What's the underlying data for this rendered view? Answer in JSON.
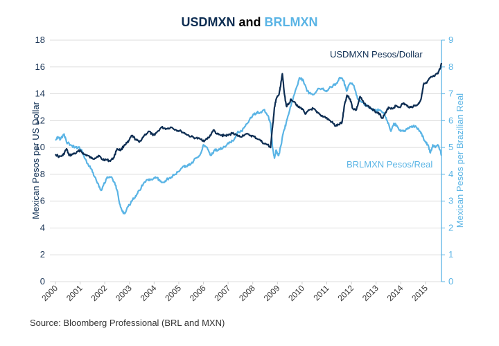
{
  "chart_data": {
    "type": "line",
    "title": {
      "part1": "USDMXN",
      "joiner": " and ",
      "part2": "BRLMXN"
    },
    "ylabel_left": "Mexican Pesos per US Dollar",
    "ylabel_right": "Mexican Pesos per Brazilian Real",
    "ylim_left": [
      0,
      18
    ],
    "ylim_right": [
      0,
      9
    ],
    "yticks_left": [
      "0",
      "2",
      "4",
      "6",
      "8",
      "10",
      "12",
      "14",
      "16",
      "18"
    ],
    "yticks_right": [
      "0",
      "1",
      "2",
      "3",
      "4",
      "5",
      "6",
      "7",
      "8",
      "9"
    ],
    "xlim": [
      2000,
      2015.65
    ],
    "xticks": [
      "2000",
      "2001",
      "2002",
      "2003",
      "2004",
      "2005",
      "2006",
      "2007",
      "2008",
      "2009",
      "2010",
      "2011",
      "2012",
      "2013",
      "2014",
      "2015"
    ],
    "grid": true,
    "colors": {
      "usd": "#0d2d52",
      "brl": "#5ab4e5"
    },
    "series": [
      {
        "name": "USDMXN Pesos/Dollar",
        "axis": "left",
        "points": [
          [
            2000.0,
            9.5
          ],
          [
            2000.15,
            9.3
          ],
          [
            2000.3,
            9.4
          ],
          [
            2000.45,
            9.9
          ],
          [
            2000.55,
            9.4
          ],
          [
            2000.7,
            9.5
          ],
          [
            2000.85,
            9.6
          ],
          [
            2001.0,
            9.8
          ],
          [
            2001.15,
            9.5
          ],
          [
            2001.3,
            9.4
          ],
          [
            2001.45,
            9.2
          ],
          [
            2001.6,
            9.2
          ],
          [
            2001.75,
            9.4
          ],
          [
            2001.9,
            9.1
          ],
          [
            2002.05,
            9.1
          ],
          [
            2002.2,
            9.0
          ],
          [
            2002.35,
            9.2
          ],
          [
            2002.5,
            9.9
          ],
          [
            2002.65,
            9.8
          ],
          [
            2002.8,
            10.2
          ],
          [
            2002.95,
            10.4
          ],
          [
            2003.1,
            10.9
          ],
          [
            2003.25,
            10.6
          ],
          [
            2003.4,
            10.4
          ],
          [
            2003.6,
            10.9
          ],
          [
            2003.8,
            11.2
          ],
          [
            2003.95,
            10.9
          ],
          [
            2004.1,
            11.1
          ],
          [
            2004.3,
            11.5
          ],
          [
            2004.5,
            11.4
          ],
          [
            2004.7,
            11.5
          ],
          [
            2004.9,
            11.3
          ],
          [
            2005.1,
            11.2
          ],
          [
            2005.3,
            11.0
          ],
          [
            2005.5,
            10.8
          ],
          [
            2005.7,
            10.7
          ],
          [
            2005.9,
            10.6
          ],
          [
            2006.05,
            10.5
          ],
          [
            2006.25,
            10.8
          ],
          [
            2006.4,
            11.3
          ],
          [
            2006.55,
            11.0
          ],
          [
            2006.7,
            10.9
          ],
          [
            2006.85,
            10.9
          ],
          [
            2007.0,
            10.9
          ],
          [
            2007.2,
            11.1
          ],
          [
            2007.35,
            10.9
          ],
          [
            2007.5,
            10.8
          ],
          [
            2007.7,
            11.0
          ],
          [
            2007.9,
            10.9
          ],
          [
            2008.05,
            10.8
          ],
          [
            2008.25,
            10.6
          ],
          [
            2008.45,
            10.3
          ],
          [
            2008.6,
            10.2
          ],
          [
            2008.72,
            10.0
          ],
          [
            2008.8,
            11.5
          ],
          [
            2008.88,
            13.0
          ],
          [
            2008.95,
            13.6
          ],
          [
            2009.05,
            13.9
          ],
          [
            2009.12,
            14.5
          ],
          [
            2009.2,
            15.5
          ],
          [
            2009.28,
            14.0
          ],
          [
            2009.36,
            13.1
          ],
          [
            2009.45,
            13.2
          ],
          [
            2009.55,
            13.6
          ],
          [
            2009.7,
            13.4
          ],
          [
            2009.85,
            13.0
          ],
          [
            2010.0,
            12.9
          ],
          [
            2010.15,
            12.5
          ],
          [
            2010.3,
            12.8
          ],
          [
            2010.45,
            12.9
          ],
          [
            2010.6,
            12.6
          ],
          [
            2010.75,
            12.4
          ],
          [
            2010.9,
            12.3
          ],
          [
            2011.05,
            12.1
          ],
          [
            2011.2,
            11.9
          ],
          [
            2011.35,
            11.6
          ],
          [
            2011.5,
            11.7
          ],
          [
            2011.62,
            11.9
          ],
          [
            2011.72,
            13.2
          ],
          [
            2011.82,
            13.9
          ],
          [
            2011.95,
            13.6
          ],
          [
            2012.05,
            12.9
          ],
          [
            2012.2,
            12.8
          ],
          [
            2012.35,
            13.8
          ],
          [
            2012.5,
            13.3
          ],
          [
            2012.65,
            13.1
          ],
          [
            2012.8,
            12.9
          ],
          [
            2012.95,
            12.7
          ],
          [
            2013.1,
            12.6
          ],
          [
            2013.25,
            12.2
          ],
          [
            2013.4,
            12.6
          ],
          [
            2013.5,
            13.0
          ],
          [
            2013.65,
            12.9
          ],
          [
            2013.8,
            13.1
          ],
          [
            2013.95,
            13.0
          ],
          [
            2014.1,
            13.3
          ],
          [
            2014.25,
            13.1
          ],
          [
            2014.4,
            13.0
          ],
          [
            2014.55,
            13.1
          ],
          [
            2014.7,
            13.2
          ],
          [
            2014.82,
            13.6
          ],
          [
            2014.92,
            14.7
          ],
          [
            2015.05,
            14.8
          ],
          [
            2015.2,
            15.2
          ],
          [
            2015.35,
            15.3
          ],
          [
            2015.5,
            15.5
          ],
          [
            2015.6,
            15.9
          ],
          [
            2015.65,
            16.3
          ]
        ]
      },
      {
        "name": "BRLMXN Pesos/Real",
        "axis": "right",
        "points": [
          [
            2000.0,
            5.3
          ],
          [
            2000.1,
            5.4
          ],
          [
            2000.2,
            5.3
          ],
          [
            2000.35,
            5.5
          ],
          [
            2000.45,
            5.2
          ],
          [
            2000.6,
            5.1
          ],
          [
            2000.8,
            5.0
          ],
          [
            2000.95,
            5.0
          ],
          [
            2001.05,
            4.9
          ],
          [
            2001.15,
            4.7
          ],
          [
            2001.3,
            4.4
          ],
          [
            2001.45,
            4.2
          ],
          [
            2001.6,
            3.9
          ],
          [
            2001.75,
            3.6
          ],
          [
            2001.85,
            3.4
          ],
          [
            2001.95,
            3.6
          ],
          [
            2002.1,
            3.9
          ],
          [
            2002.25,
            3.9
          ],
          [
            2002.4,
            3.7
          ],
          [
            2002.5,
            3.4
          ],
          [
            2002.6,
            2.9
          ],
          [
            2002.72,
            2.6
          ],
          [
            2002.82,
            2.55
          ],
          [
            2002.95,
            2.8
          ],
          [
            2003.1,
            3.0
          ],
          [
            2003.25,
            3.2
          ],
          [
            2003.4,
            3.4
          ],
          [
            2003.6,
            3.7
          ],
          [
            2003.75,
            3.8
          ],
          [
            2003.9,
            3.8
          ],
          [
            2004.05,
            3.9
          ],
          [
            2004.2,
            3.8
          ],
          [
            2004.35,
            3.7
          ],
          [
            2004.5,
            3.8
          ],
          [
            2004.7,
            3.9
          ],
          [
            2004.85,
            4.0
          ],
          [
            2005.0,
            4.1
          ],
          [
            2005.2,
            4.3
          ],
          [
            2005.35,
            4.3
          ],
          [
            2005.5,
            4.4
          ],
          [
            2005.7,
            4.6
          ],
          [
            2005.85,
            4.7
          ],
          [
            2006.0,
            5.1
          ],
          [
            2006.15,
            5.0
          ],
          [
            2006.3,
            4.7
          ],
          [
            2006.45,
            4.9
          ],
          [
            2006.6,
            4.9
          ],
          [
            2006.8,
            5.0
          ],
          [
            2006.95,
            5.1
          ],
          [
            2007.1,
            5.2
          ],
          [
            2007.25,
            5.3
          ],
          [
            2007.4,
            5.6
          ],
          [
            2007.55,
            5.6
          ],
          [
            2007.7,
            5.8
          ],
          [
            2007.85,
            6.0
          ],
          [
            2008.0,
            6.2
          ],
          [
            2008.15,
            6.3
          ],
          [
            2008.3,
            6.3
          ],
          [
            2008.45,
            6.4
          ],
          [
            2008.6,
            6.2
          ],
          [
            2008.72,
            5.9
          ],
          [
            2008.8,
            5.0
          ],
          [
            2008.88,
            4.6
          ],
          [
            2008.95,
            4.9
          ],
          [
            2009.05,
            4.7
          ],
          [
            2009.15,
            5.1
          ],
          [
            2009.25,
            5.6
          ],
          [
            2009.35,
            5.9
          ],
          [
            2009.5,
            6.4
          ],
          [
            2009.65,
            6.9
          ],
          [
            2009.8,
            7.3
          ],
          [
            2009.9,
            7.6
          ],
          [
            2010.05,
            7.5
          ],
          [
            2010.2,
            7.1
          ],
          [
            2010.35,
            7.0
          ],
          [
            2010.5,
            7.0
          ],
          [
            2010.65,
            7.2
          ],
          [
            2010.8,
            7.2
          ],
          [
            2010.95,
            7.1
          ],
          [
            2011.1,
            7.2
          ],
          [
            2011.25,
            7.3
          ],
          [
            2011.4,
            7.4
          ],
          [
            2011.55,
            7.6
          ],
          [
            2011.68,
            7.5
          ],
          [
            2011.8,
            7.1
          ],
          [
            2011.95,
            7.4
          ],
          [
            2012.1,
            7.3
          ],
          [
            2012.25,
            6.8
          ],
          [
            2012.4,
            6.7
          ],
          [
            2012.55,
            6.6
          ],
          [
            2012.7,
            6.5
          ],
          [
            2012.85,
            6.4
          ],
          [
            2013.0,
            6.4
          ],
          [
            2013.15,
            6.4
          ],
          [
            2013.3,
            6.3
          ],
          [
            2013.45,
            6.0
          ],
          [
            2013.6,
            5.6
          ],
          [
            2013.72,
            5.9
          ],
          [
            2013.85,
            5.8
          ],
          [
            2014.0,
            5.6
          ],
          [
            2014.15,
            5.6
          ],
          [
            2014.3,
            5.7
          ],
          [
            2014.45,
            5.8
          ],
          [
            2014.6,
            5.8
          ],
          [
            2014.75,
            5.6
          ],
          [
            2014.85,
            5.5
          ],
          [
            2015.0,
            5.2
          ],
          [
            2015.1,
            5.1
          ],
          [
            2015.2,
            4.8
          ],
          [
            2015.3,
            5.1
          ],
          [
            2015.4,
            5.0
          ],
          [
            2015.5,
            5.1
          ],
          [
            2015.6,
            4.9
          ],
          [
            2015.65,
            4.7
          ]
        ]
      }
    ],
    "annotations": [
      {
        "text": "USDMXN Pesos/Dollar",
        "series": "usd"
      },
      {
        "text": "BRLMXN Pesos/Real",
        "series": "brl"
      }
    ]
  },
  "source": "Source: Bloomberg Professional (BRL and MXN)"
}
